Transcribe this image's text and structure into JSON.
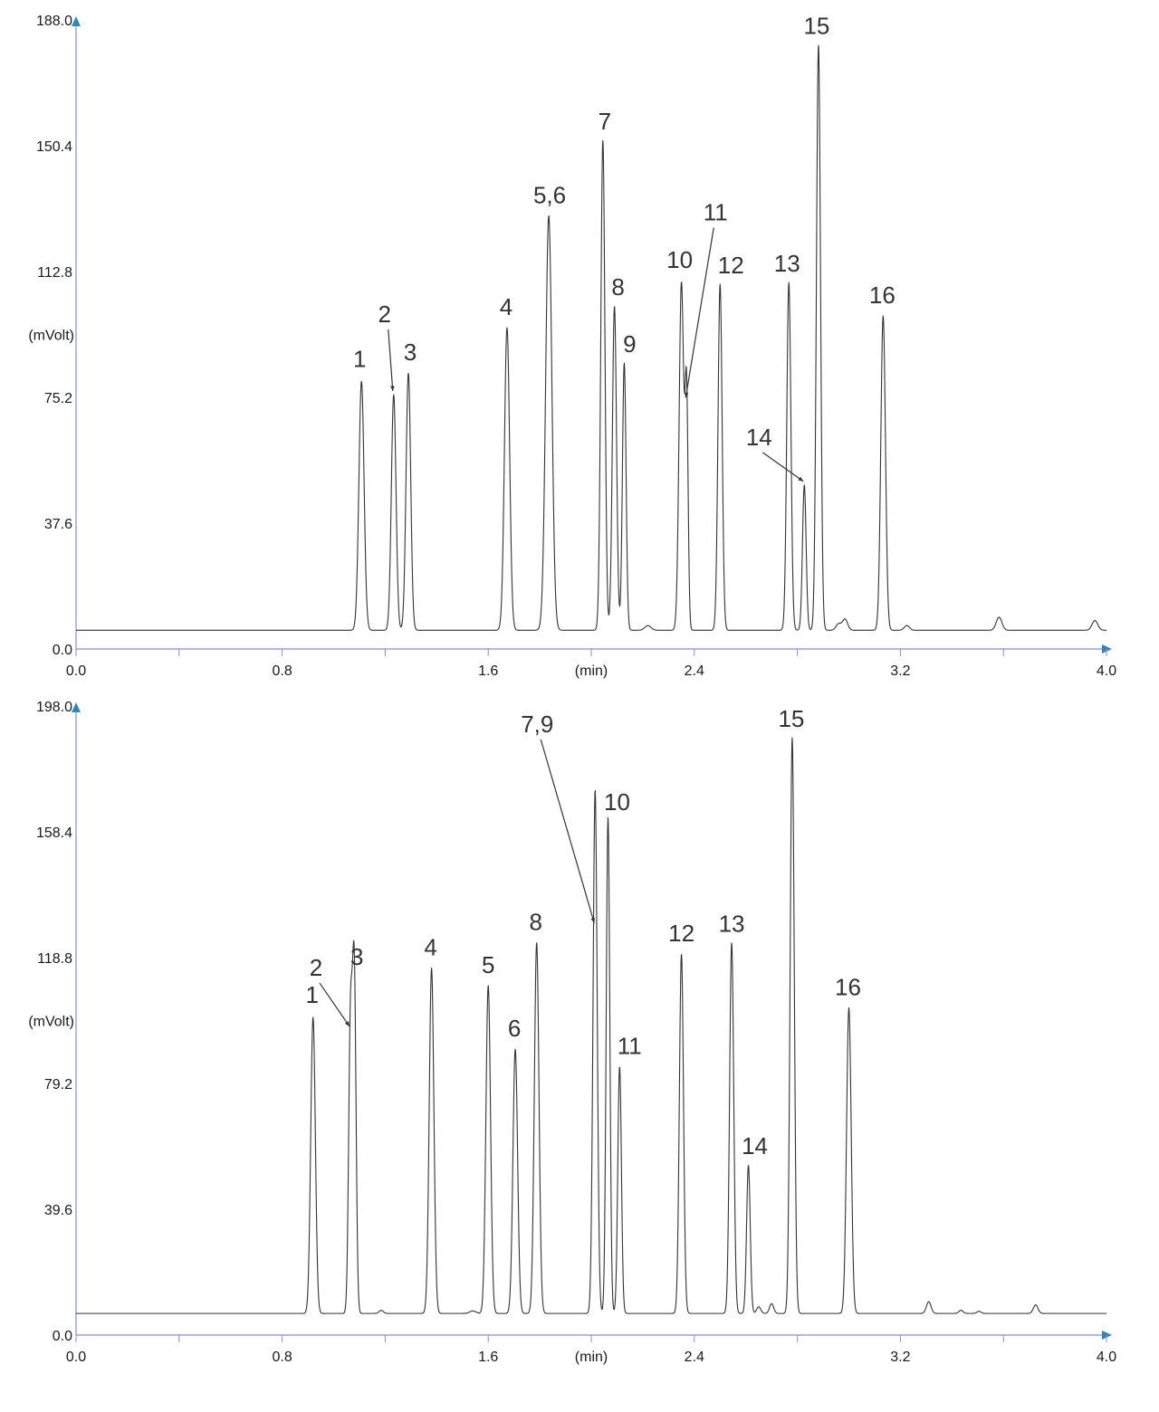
{
  "chart_data": [
    {
      "type": "line",
      "xlabel": "(min)",
      "ylabel": "(mVolt)",
      "xlim": [
        0.0,
        4.0
      ],
      "ylim": [
        0.0,
        188.0
      ],
      "x_ticks": [
        "0.0",
        "0.8",
        "1.6",
        "2.4",
        "3.2",
        "4.0"
      ],
      "y_ticks": [
        "0.0",
        "37.6",
        "75.2",
        "112.8",
        "150.4",
        "188.0"
      ],
      "baseline": 5.6,
      "peaks": [
        {
          "label": "1",
          "x": 1.108,
          "y": 80.0,
          "w": 0.01
        },
        {
          "label": "2",
          "x": 1.233,
          "y": 76.0,
          "w": 0.009
        },
        {
          "label": "3",
          "x": 1.29,
          "y": 82.5,
          "w": 0.009
        },
        {
          "label": "4",
          "x": 1.673,
          "y": 96.0,
          "w": 0.01
        },
        {
          "label": "5,6",
          "x": 1.835,
          "y": 129.5,
          "w": 0.012
        },
        {
          "label": "7",
          "x": 2.045,
          "y": 152.0,
          "w": 0.008
        },
        {
          "label": "8",
          "x": 2.09,
          "y": 102.5,
          "w": 0.008
        },
        {
          "label": "9",
          "x": 2.128,
          "y": 85.5,
          "w": 0.007
        },
        {
          "label": "10",
          "x": 2.35,
          "y": 109.5,
          "w": 0.009
        },
        {
          "label": "11",
          "x": 2.37,
          "y": 74.0,
          "w": 0.006
        },
        {
          "label": "12",
          "x": 2.5,
          "y": 109.0,
          "w": 0.008
        },
        {
          "label": "13",
          "x": 2.767,
          "y": 109.5,
          "w": 0.008
        },
        {
          "label": "14",
          "x": 2.827,
          "y": 49.0,
          "w": 0.007
        },
        {
          "label": "15",
          "x": 2.882,
          "y": 180.5,
          "w": 0.008
        },
        {
          "label": "16",
          "x": 3.133,
          "y": 99.5,
          "w": 0.009
        }
      ],
      "minor_peaks": [
        {
          "x": 2.22,
          "y": 7.0,
          "w": 0.012
        },
        {
          "x": 2.96,
          "y": 7.5,
          "w": 0.01
        },
        {
          "x": 2.985,
          "y": 8.9,
          "w": 0.01
        },
        {
          "x": 3.225,
          "y": 7.0,
          "w": 0.01
        },
        {
          "x": 3.583,
          "y": 9.5,
          "w": 0.011
        },
        {
          "x": 3.955,
          "y": 8.5,
          "w": 0.011
        }
      ]
    },
    {
      "type": "line",
      "xlabel": "(min)",
      "ylabel": "(mVolt)",
      "xlim": [
        0.0,
        4.0
      ],
      "ylim": [
        0.0,
        198.0
      ],
      "x_ticks": [
        "0.0",
        "0.8",
        "1.6",
        "2.4",
        "3.2",
        "4.0"
      ],
      "y_ticks": [
        "0.0",
        "39.6",
        "79.2",
        "118.8",
        "158.4",
        "198.0"
      ],
      "baseline": 6.8,
      "peaks": [
        {
          "label": "1",
          "x": 0.92,
          "y": 100.0,
          "w": 0.009
        },
        {
          "label": "2",
          "x": 1.065,
          "y": 96.0,
          "w": 0.007
        },
        {
          "label": "3",
          "x": 1.08,
          "y": 112.5,
          "w": 0.007
        },
        {
          "label": "4",
          "x": 1.38,
          "y": 115.5,
          "w": 0.009
        },
        {
          "label": "5",
          "x": 1.6,
          "y": 110.0,
          "w": 0.009
        },
        {
          "label": "6",
          "x": 1.705,
          "y": 90.0,
          "w": 0.009
        },
        {
          "label": "8",
          "x": 1.788,
          "y": 123.5,
          "w": 0.009
        },
        {
          "label": "7,9",
          "x": 2.015,
          "y": 171.5,
          "w": 0.008
        },
        {
          "label": "10",
          "x": 2.065,
          "y": 163.0,
          "w": 0.007
        },
        {
          "label": "11",
          "x": 2.11,
          "y": 84.5,
          "w": 0.007
        },
        {
          "label": "12",
          "x": 2.35,
          "y": 120.0,
          "w": 0.008
        },
        {
          "label": "13",
          "x": 2.545,
          "y": 123.5,
          "w": 0.008
        },
        {
          "label": "14",
          "x": 2.61,
          "y": 53.5,
          "w": 0.007
        },
        {
          "label": "15",
          "x": 2.78,
          "y": 188.0,
          "w": 0.008
        },
        {
          "label": "16",
          "x": 3.0,
          "y": 103.0,
          "w": 0.009
        }
      ],
      "minor_peaks": [
        {
          "x": 1.185,
          "y": 7.8,
          "w": 0.008
        },
        {
          "x": 1.54,
          "y": 7.6,
          "w": 0.012
        },
        {
          "x": 2.65,
          "y": 8.9,
          "w": 0.008
        },
        {
          "x": 2.7,
          "y": 9.9,
          "w": 0.008
        },
        {
          "x": 3.31,
          "y": 10.5,
          "w": 0.009
        },
        {
          "x": 3.435,
          "y": 7.8,
          "w": 0.008
        },
        {
          "x": 3.505,
          "y": 7.5,
          "w": 0.008
        },
        {
          "x": 3.725,
          "y": 9.5,
          "w": 0.009
        }
      ]
    }
  ]
}
